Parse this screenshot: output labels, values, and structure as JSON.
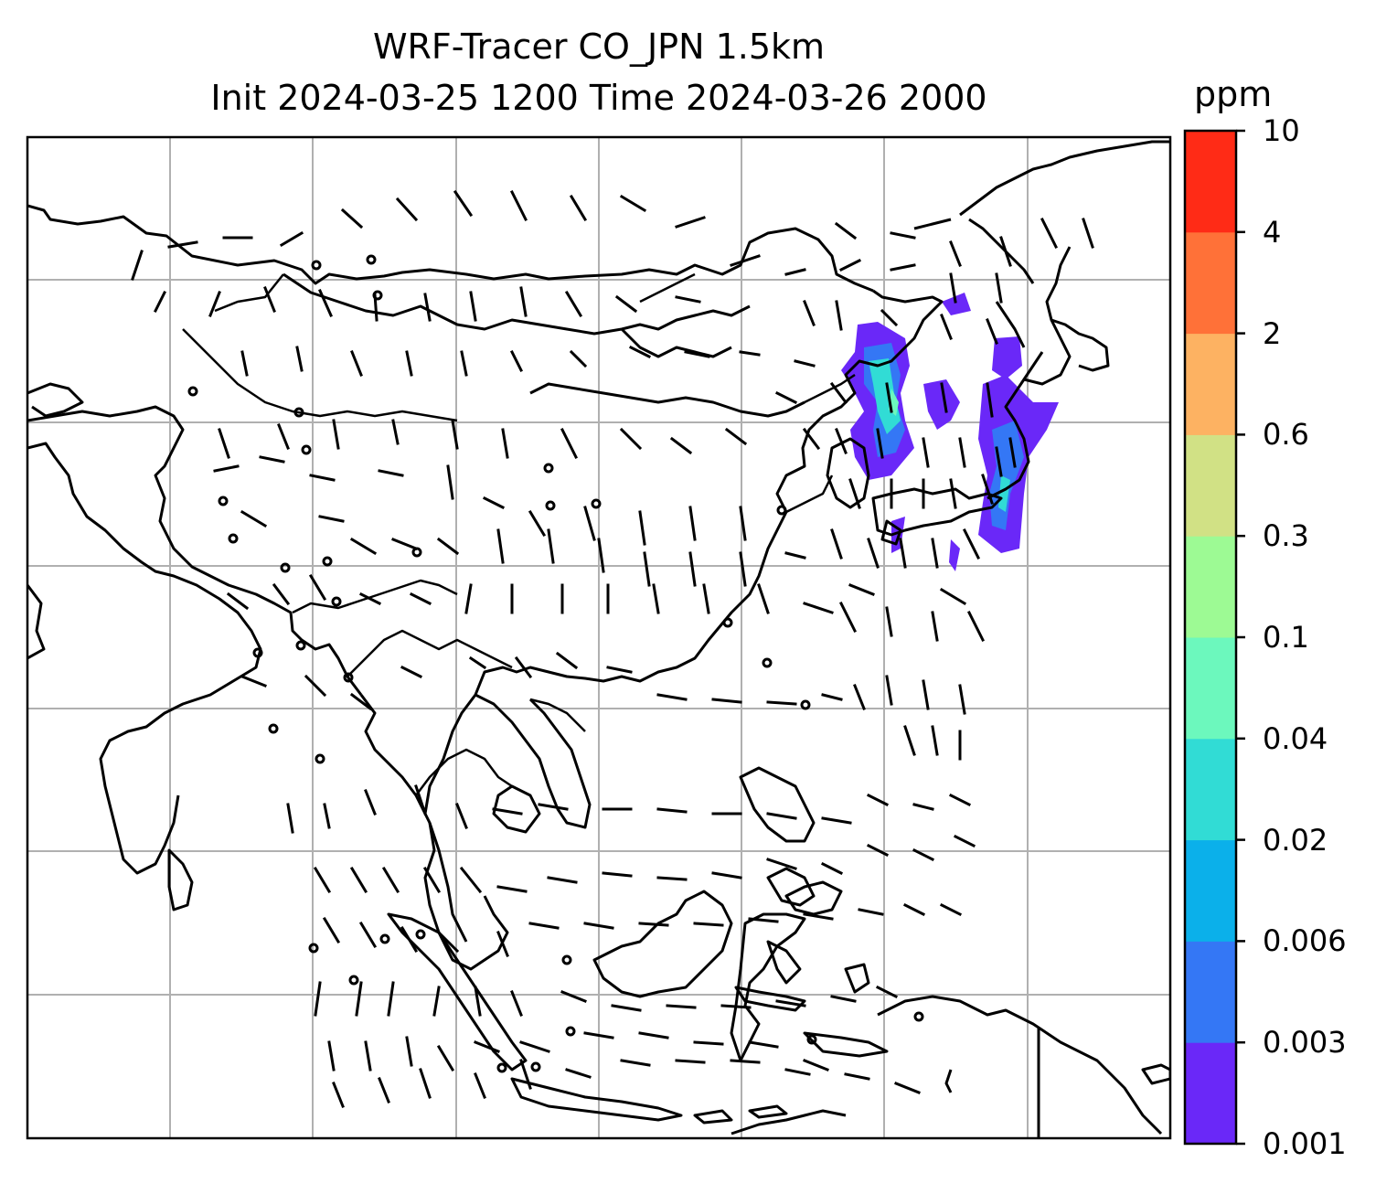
{
  "title": {
    "line1": "WRF-Tracer CO_JPN 1.5km",
    "line2": "Init 2024-03-25 1200 Time 2024-03-26 2000"
  },
  "colorbar": {
    "unit": "ppm",
    "levels": [
      "0.001",
      "0.003",
      "0.006",
      "0.02",
      "0.04",
      "0.1",
      "0.3",
      "0.6",
      "2",
      "4",
      "10"
    ],
    "colors": [
      "#6a28f8",
      "#3477f5",
      "#0bb0ea",
      "#31dcd5",
      "#6cf8bd",
      "#9dfa94",
      "#d1e185",
      "#fdb262",
      "#ff7138",
      "#ff2b16"
    ]
  },
  "map": {
    "gridlines": true,
    "plume_colors": [
      "#6a28f8",
      "#3477f5",
      "#31dcd5",
      "#6cf8bd"
    ]
  }
}
